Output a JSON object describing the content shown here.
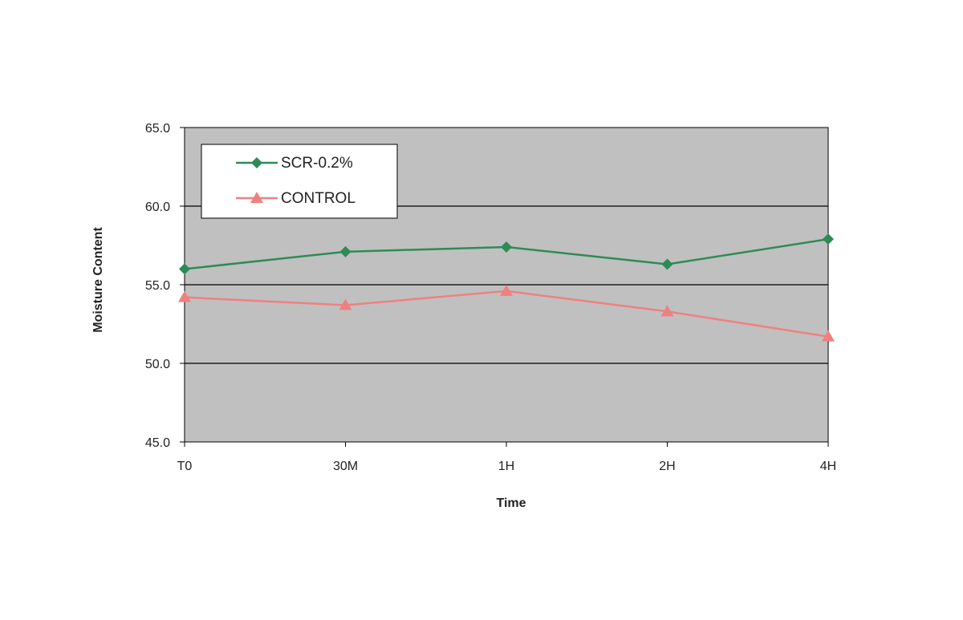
{
  "chart_data": {
    "type": "line",
    "categories": [
      "T0",
      "30M",
      "1H",
      "2H",
      "4H"
    ],
    "series": [
      {
        "name": "SCR-0.2%",
        "values": [
          56.0,
          57.1,
          57.4,
          56.3,
          57.9
        ],
        "color": "#2e8b57",
        "marker": "diamond"
      },
      {
        "name": "CONTROL",
        "values": [
          54.2,
          53.7,
          54.6,
          53.3,
          51.7
        ],
        "color": "#f08080",
        "marker": "triangle"
      }
    ],
    "y_ticks": [
      "45.0",
      "50.0",
      "55.0",
      "60.0",
      "65.0"
    ],
    "xlabel": "Time",
    "ylabel": "Moisture Content",
    "ylim": [
      45,
      65
    ],
    "grid": true,
    "plot_background": "#c0c0c0",
    "legend_position": "top-left"
  }
}
